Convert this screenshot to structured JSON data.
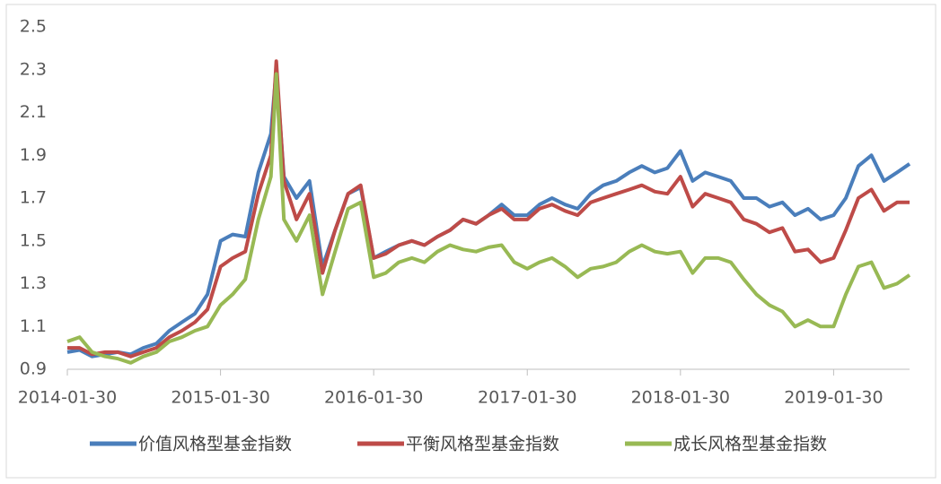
{
  "chart_data": {
    "type": "line",
    "x": [
      "2014-01-30",
      "2014-02-28",
      "2014-03-30",
      "2014-04-30",
      "2014-05-30",
      "2014-06-30",
      "2014-07-30",
      "2014-08-30",
      "2014-09-30",
      "2014-10-30",
      "2014-11-30",
      "2014-12-30",
      "2015-01-30",
      "2015-02-28",
      "2015-03-30",
      "2015-04-30",
      "2015-05-30",
      "2015-06-12",
      "2015-06-30",
      "2015-07-30",
      "2015-08-30",
      "2015-09-30",
      "2015-10-30",
      "2015-11-30",
      "2015-12-30",
      "2016-01-30",
      "2016-02-28",
      "2016-03-30",
      "2016-04-30",
      "2016-05-30",
      "2016-06-30",
      "2016-07-30",
      "2016-08-30",
      "2016-09-30",
      "2016-10-30",
      "2016-11-30",
      "2016-12-30",
      "2017-01-30",
      "2017-02-28",
      "2017-03-30",
      "2017-04-30",
      "2017-05-30",
      "2017-06-30",
      "2017-07-30",
      "2017-08-30",
      "2017-09-30",
      "2017-10-30",
      "2017-11-30",
      "2017-12-30",
      "2018-01-30",
      "2018-02-28",
      "2018-03-30",
      "2018-04-30",
      "2018-05-30",
      "2018-06-30",
      "2018-07-30",
      "2018-08-30",
      "2018-09-30",
      "2018-10-30",
      "2018-11-30",
      "2018-12-30",
      "2019-01-30",
      "2019-02-28",
      "2019-03-30",
      "2019-04-30",
      "2019-05-30",
      "2019-06-30",
      "2019-07-30"
    ],
    "series": [
      {
        "name": "价值风格型基金指数",
        "color": "#4a7ebb",
        "values": [
          0.98,
          0.99,
          0.96,
          0.97,
          0.98,
          0.97,
          1.0,
          1.02,
          1.08,
          1.12,
          1.16,
          1.25,
          1.5,
          1.53,
          1.52,
          1.82,
          2.0,
          2.3,
          1.8,
          1.7,
          1.78,
          1.38,
          1.55,
          1.72,
          1.75,
          1.42,
          1.45,
          1.48,
          1.5,
          1.48,
          1.52,
          1.55,
          1.6,
          1.58,
          1.62,
          1.67,
          1.62,
          1.62,
          1.67,
          1.7,
          1.67,
          1.65,
          1.72,
          1.76,
          1.78,
          1.82,
          1.85,
          1.82,
          1.84,
          1.92,
          1.78,
          1.82,
          1.8,
          1.78,
          1.7,
          1.7,
          1.66,
          1.68,
          1.62,
          1.65,
          1.6,
          1.62,
          1.7,
          1.85,
          1.9,
          1.78,
          1.82,
          1.86
        ]
      },
      {
        "name": "平衡风格型基金指数",
        "color": "#be4b48",
        "values": [
          1.0,
          1.0,
          0.97,
          0.98,
          0.98,
          0.96,
          0.98,
          1.0,
          1.05,
          1.08,
          1.12,
          1.18,
          1.38,
          1.42,
          1.45,
          1.72,
          1.9,
          2.34,
          1.78,
          1.6,
          1.72,
          1.35,
          1.55,
          1.72,
          1.76,
          1.42,
          1.44,
          1.48,
          1.5,
          1.48,
          1.52,
          1.55,
          1.6,
          1.58,
          1.62,
          1.65,
          1.6,
          1.6,
          1.65,
          1.67,
          1.64,
          1.62,
          1.68,
          1.7,
          1.72,
          1.74,
          1.76,
          1.73,
          1.72,
          1.8,
          1.66,
          1.72,
          1.7,
          1.68,
          1.6,
          1.58,
          1.54,
          1.56,
          1.45,
          1.46,
          1.4,
          1.42,
          1.55,
          1.7,
          1.74,
          1.64,
          1.68,
          1.68
        ]
      },
      {
        "name": "成长风格型基金指数",
        "color": "#98b954",
        "values": [
          1.03,
          1.05,
          0.98,
          0.96,
          0.95,
          0.93,
          0.96,
          0.98,
          1.03,
          1.05,
          1.08,
          1.1,
          1.2,
          1.25,
          1.32,
          1.6,
          1.8,
          2.28,
          1.6,
          1.5,
          1.62,
          1.25,
          1.45,
          1.65,
          1.68,
          1.33,
          1.35,
          1.4,
          1.42,
          1.4,
          1.45,
          1.48,
          1.46,
          1.45,
          1.47,
          1.48,
          1.4,
          1.37,
          1.4,
          1.42,
          1.38,
          1.33,
          1.37,
          1.38,
          1.4,
          1.45,
          1.48,
          1.45,
          1.44,
          1.45,
          1.35,
          1.42,
          1.42,
          1.4,
          1.32,
          1.25,
          1.2,
          1.17,
          1.1,
          1.13,
          1.1,
          1.1,
          1.25,
          1.38,
          1.4,
          1.28,
          1.3,
          1.34
        ]
      }
    ],
    "xlim": [
      "2014-01-30",
      "2019-07-30"
    ],
    "xticks": [
      "2014-01-30",
      "2015-01-30",
      "2016-01-30",
      "2017-01-30",
      "2018-01-30",
      "2019-01-30"
    ],
    "ylim": [
      0.9,
      2.5
    ],
    "yticks": [
      0.9,
      1.1,
      1.3,
      1.5,
      1.7,
      1.9,
      2.1,
      2.3,
      2.5
    ],
    "grid": false,
    "legend": "bottom"
  }
}
